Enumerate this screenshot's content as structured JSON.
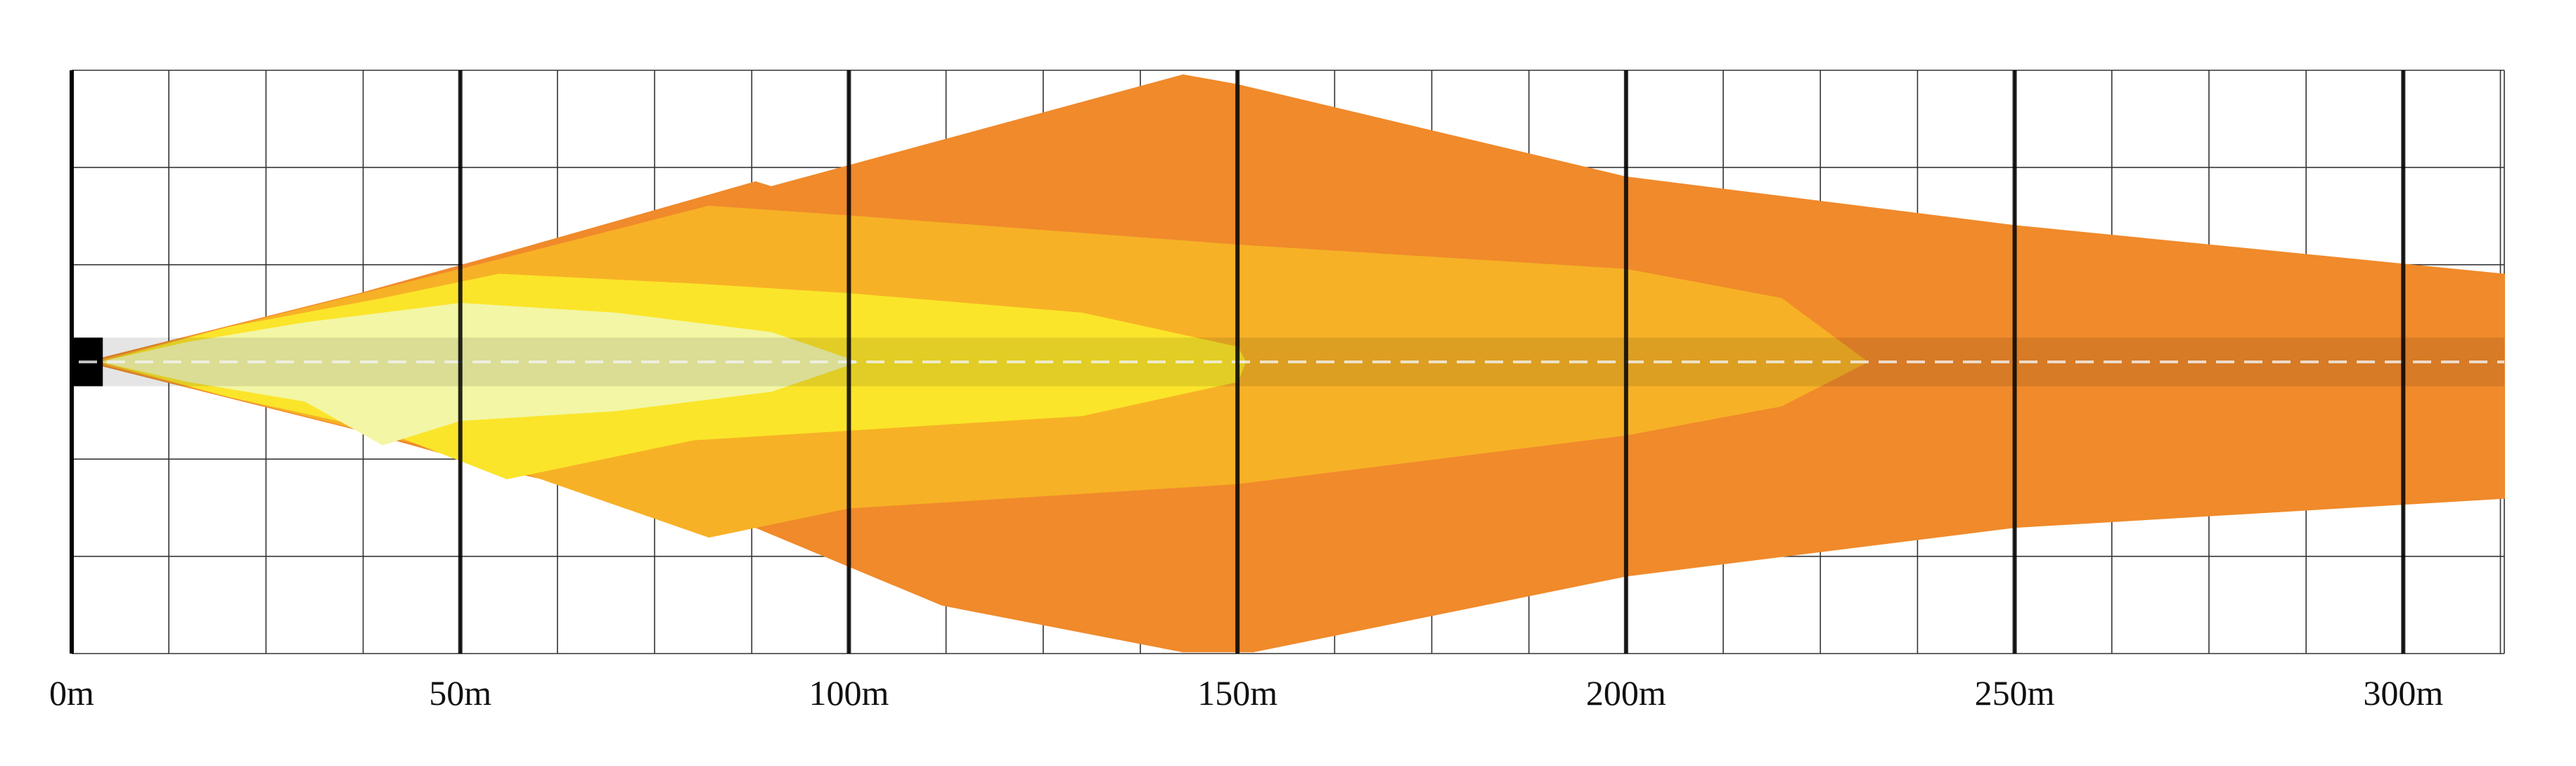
{
  "chart_data": {
    "type": "area",
    "title": "",
    "xlabel": "",
    "ylabel": "",
    "xlim": [
      0,
      313
    ],
    "ylim": [
      -30,
      30
    ],
    "grid": true,
    "x_tick_step_minor": 12.5,
    "y_tick_step": 10,
    "x_ticks": [
      {
        "value": 0,
        "label": "0m"
      },
      {
        "value": 50,
        "label": "50m"
      },
      {
        "value": 100,
        "label": "100m"
      },
      {
        "value": 150,
        "label": "150m"
      },
      {
        "value": 200,
        "label": "200m"
      },
      {
        "value": 250,
        "label": "250m"
      },
      {
        "value": 300,
        "label": "300m"
      }
    ],
    "road_band": {
      "y_min": -2.5,
      "y_max": 2.5,
      "color": "#000000"
    },
    "series": [
      {
        "color": "#f08a2b",
        "upper": [
          [
            2,
            0
          ],
          [
            12,
            2
          ],
          [
            37,
            7
          ],
          [
            55,
            11
          ],
          [
            88,
            18.5
          ],
          [
            90,
            18
          ],
          [
            143,
            29.5
          ],
          [
            150,
            28.5
          ],
          [
            200,
            19
          ],
          [
            250,
            14
          ],
          [
            313,
            9
          ]
        ],
        "lower": [
          [
            2,
            0
          ],
          [
            12,
            -2
          ],
          [
            37,
            -7
          ],
          [
            55,
            -11
          ],
          [
            88,
            -17
          ],
          [
            112,
            -25
          ],
          [
            143,
            -29.8
          ],
          [
            152,
            -29.8
          ],
          [
            200,
            -22
          ],
          [
            250,
            -17
          ],
          [
            313,
            -14
          ]
        ]
      },
      {
        "color": "#f7b126",
        "upper": [
          [
            3,
            0
          ],
          [
            15,
            2.5
          ],
          [
            35,
            6.5
          ],
          [
            55,
            10.5
          ],
          [
            82,
            16
          ],
          [
            100,
            15
          ],
          [
            150,
            12
          ],
          [
            200,
            9.5
          ],
          [
            220,
            6.5
          ],
          [
            231,
            0
          ]
        ],
        "lower": [
          [
            3,
            0
          ],
          [
            15,
            -2.5
          ],
          [
            35,
            -6.5
          ],
          [
            55,
            -10.5
          ],
          [
            82,
            -18
          ],
          [
            100,
            -15
          ],
          [
            150,
            -12.5
          ],
          [
            200,
            -7.5
          ],
          [
            220,
            -4.5
          ],
          [
            231,
            0
          ]
        ]
      },
      {
        "color": "#fbe52a",
        "upper": [
          [
            4,
            0
          ],
          [
            20,
            3.5
          ],
          [
            40,
            6.5
          ],
          [
            55,
            9
          ],
          [
            80,
            8
          ],
          [
            100,
            7
          ],
          [
            130,
            5
          ],
          [
            150,
            1.5
          ],
          [
            151,
            0
          ]
        ],
        "lower": [
          [
            4,
            0
          ],
          [
            20,
            -3.5
          ],
          [
            40,
            -7
          ],
          [
            56,
            -12
          ],
          [
            80,
            -8
          ],
          [
            100,
            -7
          ],
          [
            130,
            -5.5
          ],
          [
            150,
            -2
          ],
          [
            151,
            0
          ]
        ]
      },
      {
        "color": "#f3f6a4",
        "upper": [
          [
            4,
            0
          ],
          [
            15,
            2
          ],
          [
            30,
            4
          ],
          [
            50,
            6
          ],
          [
            70,
            5
          ],
          [
            90,
            3
          ],
          [
            101,
            0
          ]
        ],
        "lower": [
          [
            4,
            0
          ],
          [
            15,
            -2
          ],
          [
            30,
            -4
          ],
          [
            40,
            -8.5
          ],
          [
            50,
            -6
          ],
          [
            70,
            -5
          ],
          [
            90,
            -3
          ],
          [
            101,
            0
          ]
        ]
      }
    ],
    "centerline": {
      "y": 0,
      "style": "dashed",
      "color": "#f2f2f2"
    }
  }
}
